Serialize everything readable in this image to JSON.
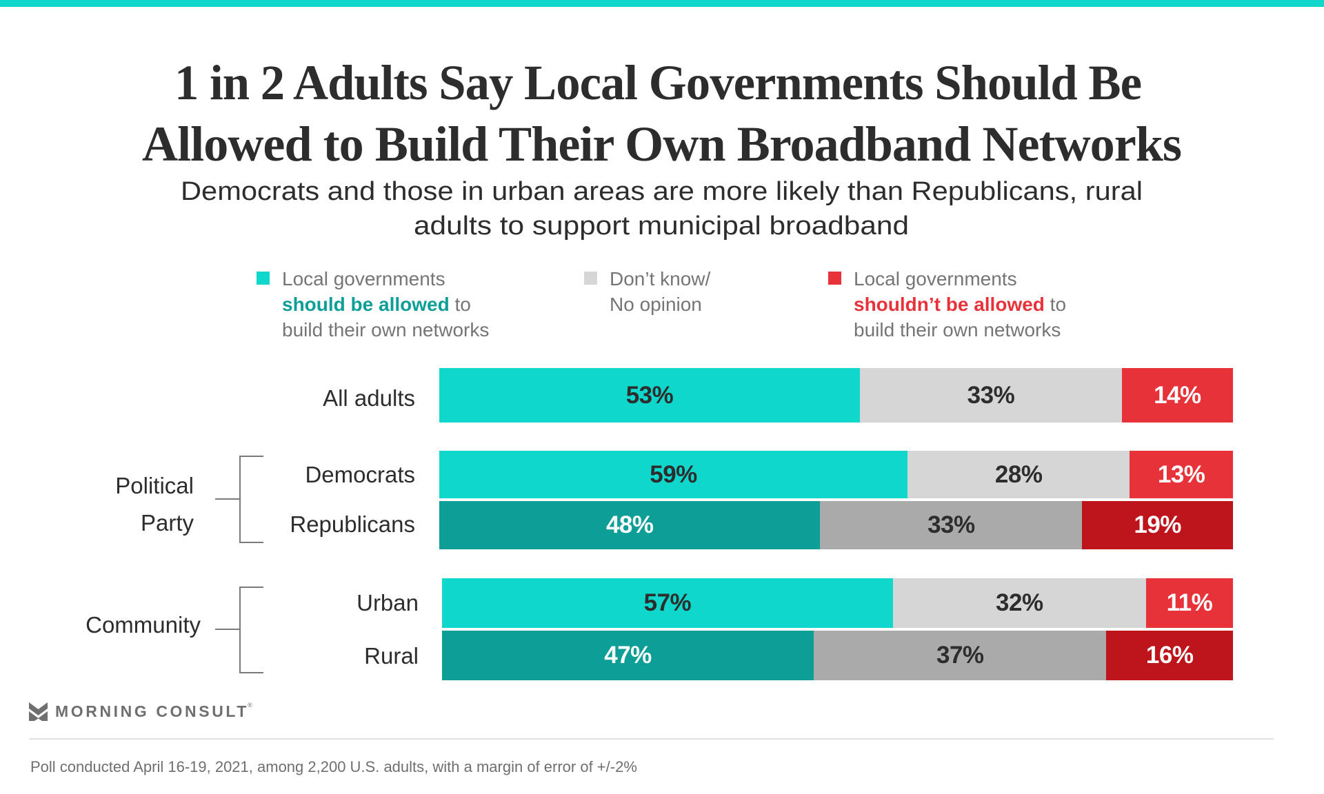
{
  "colors": {
    "top_band": "#10d7cc",
    "should_allowed": "#10d7cc",
    "should_allowed_dark": "#0c9e97",
    "dont_know": "#d6d6d6",
    "dont_know_dark": "#aaaaaa",
    "shouldnt_allowed": "#e8323a",
    "shouldnt_allowed_dark": "#bd151b",
    "allowed_text": "#0c9e97",
    "not_allowed_text": "#e8323a",
    "label_dark": "#2d2d2d",
    "label_light": "#ffffff"
  },
  "title": {
    "line1": "1 in 2 Adults Say Local Governments Should Be",
    "line2": "Allowed to Build Their Own Broadband Networks"
  },
  "subtitle": {
    "line1": "Democrats and those in urban areas are more likely than Republicans, rural",
    "line2": "adults to support municipal broadband"
  },
  "legend": [
    {
      "icon": "teal-square-swatch",
      "line1": "Local governments",
      "line2_strong": "should be allowed",
      "line2_rest": " to",
      "line3": "build their own networks"
    },
    {
      "icon": "gray-square-swatch",
      "line1": "Don’t know/",
      "line2": "No opinion"
    },
    {
      "icon": "red-square-swatch",
      "line1": "Local governments",
      "line2_strong": "shouldn’t be allowed",
      "line2_rest": " to",
      "line3": "build their own networks"
    }
  ],
  "groups": {
    "political_line1": "Political",
    "political_line2": "Party",
    "community": "Community"
  },
  "chart_data": {
    "type": "bar",
    "orientation": "horizontal",
    "stacked": true,
    "title": "1 in 2 Adults Say Local Governments Should Be Allowed to Build Their Own Broadband Networks",
    "subtitle": "Democrats and those in urban areas are more likely than Republicans, rural adults to support municipal broadband",
    "categories": [
      "All adults",
      "Democrats",
      "Republicans",
      "Urban",
      "Rural"
    ],
    "category_groups": [
      {
        "name": "Political Party",
        "members": [
          "Democrats",
          "Republicans"
        ]
      },
      {
        "name": "Community",
        "members": [
          "Urban",
          "Rural"
        ]
      }
    ],
    "series": [
      {
        "name": "Local governments should be allowed to build their own networks",
        "values": [
          53,
          59,
          48,
          57,
          47
        ]
      },
      {
        "name": "Don’t know/No opinion",
        "values": [
          33,
          28,
          33,
          32,
          37
        ]
      },
      {
        "name": "Local governments shouldn’t be allowed to build their own networks",
        "values": [
          14,
          13,
          19,
          11,
          16
        ]
      }
    ],
    "labels": [
      [
        "53%",
        "33%",
        "14%"
      ],
      [
        "59%",
        "28%",
        "13%"
      ],
      [
        "48%",
        "33%",
        "19%"
      ],
      [
        "57%",
        "32%",
        "11%"
      ],
      [
        "47%",
        "37%",
        "16%"
      ]
    ],
    "dark_rows": [
      false,
      false,
      true,
      false,
      true
    ],
    "unit": "%",
    "xlim": [
      0,
      100
    ],
    "legend_position": "top"
  },
  "branding": {
    "logo_text": "MORNING CONSULT",
    "logo_reg": "®"
  },
  "footnote": "Poll conducted April 16-19, 2021, among 2,200 U.S. adults, with a margin of error of +/-2%"
}
